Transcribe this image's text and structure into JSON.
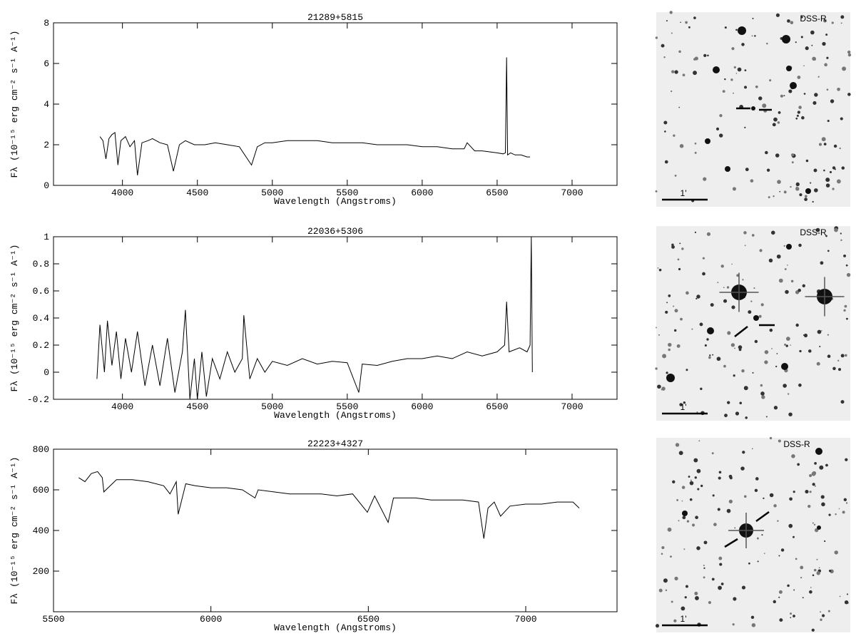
{
  "chart_data": [
    {
      "type": "line",
      "title": "21289+5815",
      "x_label": "Wavelength (Angstroms)",
      "y_label": "Fλ (10⁻¹⁵ erg cm⁻² s⁻¹ A⁻¹)",
      "x": [
        3850,
        3870,
        3890,
        3910,
        3930,
        3950,
        3970,
        3990,
        4020,
        4050,
        4080,
        4100,
        4130,
        4170,
        4200,
        4250,
        4300,
        4340,
        4380,
        4420,
        4480,
        4550,
        4620,
        4700,
        4780,
        4861,
        4900,
        4950,
        5000,
        5100,
        5200,
        5300,
        5400,
        5500,
        5600,
        5700,
        5800,
        5900,
        6000,
        6100,
        6200,
        6280,
        6300,
        6350,
        6400,
        6450,
        6500,
        6540,
        6555,
        6563,
        6570,
        6590,
        6620,
        6660,
        6700,
        6720
      ],
      "series": [
        {
          "color": "#000000",
          "values": [
            2.4,
            2.2,
            1.3,
            2.3,
            2.5,
            2.6,
            1.0,
            2.2,
            2.4,
            1.9,
            2.2,
            0.5,
            2.1,
            2.2,
            2.3,
            2.1,
            2.0,
            0.7,
            2.0,
            2.2,
            2.0,
            2.0,
            2.1,
            2.0,
            1.9,
            1.0,
            1.9,
            2.1,
            2.1,
            2.2,
            2.2,
            2.2,
            2.1,
            2.1,
            2.1,
            2.0,
            2.0,
            2.0,
            1.9,
            1.9,
            1.8,
            1.8,
            2.1,
            1.7,
            1.7,
            1.65,
            1.6,
            1.55,
            1.6,
            6.3,
            1.5,
            1.6,
            1.5,
            1.5,
            1.4,
            1.4
          ]
        }
      ],
      "xlim": [
        3540,
        7300
      ],
      "ylim": [
        0,
        8
      ],
      "xticks": [
        4000,
        4500,
        5000,
        5500,
        6000,
        6500,
        7000
      ],
      "yticks": [
        0,
        2,
        4,
        6,
        8
      ]
    },
    {
      "type": "line",
      "title": "22036+5306",
      "x_label": "Wavelength (Angstroms)",
      "y_label": "Fλ (10⁻¹⁵ erg cm⁻² s⁻¹ A⁻¹)",
      "x": [
        3830,
        3850,
        3880,
        3900,
        3930,
        3960,
        3990,
        4020,
        4060,
        4100,
        4150,
        4200,
        4250,
        4300,
        4350,
        4400,
        4420,
        4450,
        4480,
        4500,
        4530,
        4560,
        4600,
        4650,
        4700,
        4750,
        4800,
        4810,
        4850,
        4900,
        4950,
        5000,
        5100,
        5200,
        5300,
        5400,
        5500,
        5577,
        5600,
        5700,
        5800,
        5900,
        6000,
        6100,
        6200,
        6300,
        6400,
        6500,
        6550,
        6563,
        6580,
        6650,
        6700,
        6720,
        6728,
        6735
      ],
      "series": [
        {
          "color": "#000000",
          "values": [
            -0.05,
            0.35,
            0.0,
            0.38,
            0.05,
            0.3,
            -0.05,
            0.25,
            0.0,
            0.3,
            -0.1,
            0.2,
            -0.1,
            0.25,
            -0.15,
            0.15,
            0.46,
            -0.2,
            0.1,
            -0.2,
            0.15,
            -0.18,
            0.1,
            -0.05,
            0.15,
            0.0,
            0.1,
            0.42,
            -0.05,
            0.1,
            0.0,
            0.08,
            0.05,
            0.1,
            0.06,
            0.08,
            0.07,
            -0.15,
            0.06,
            0.05,
            0.08,
            0.1,
            0.1,
            0.12,
            0.1,
            0.15,
            0.12,
            0.15,
            0.2,
            0.52,
            0.15,
            0.18,
            0.15,
            0.2,
            1.0,
            0.0
          ]
        }
      ],
      "xlim": [
        3540,
        7300
      ],
      "ylim": [
        -0.2,
        1
      ],
      "xticks": [
        4000,
        4500,
        5000,
        5500,
        6000,
        6500,
        7000
      ],
      "yticks": [
        -0.2,
        0,
        0.2,
        0.4,
        0.6,
        0.8,
        1
      ]
    },
    {
      "type": "line",
      "title": "22223+4327",
      "x_label": "Wavelength (Angstroms)",
      "y_label": "Fλ (10⁻¹⁵ erg cm⁻² s⁻¹ A⁻¹)",
      "x": [
        5580,
        5600,
        5620,
        5640,
        5655,
        5660,
        5700,
        5750,
        5800,
        5850,
        5870,
        5890,
        5896,
        5920,
        5950,
        6000,
        6050,
        6100,
        6140,
        6150,
        6200,
        6250,
        6300,
        6350,
        6400,
        6450,
        6497,
        6520,
        6563,
        6580,
        6650,
        6700,
        6750,
        6800,
        6850,
        6867,
        6880,
        6900,
        6920,
        6950,
        7000,
        7050,
        7100,
        7150,
        7170
      ],
      "series": [
        {
          "color": "#000000",
          "values": [
            660,
            640,
            680,
            690,
            660,
            590,
            650,
            650,
            640,
            620,
            580,
            640,
            480,
            630,
            620,
            610,
            610,
            600,
            560,
            600,
            590,
            580,
            580,
            580,
            570,
            580,
            490,
            570,
            440,
            560,
            560,
            550,
            550,
            550,
            540,
            360,
            510,
            540,
            470,
            520,
            530,
            530,
            540,
            540,
            510
          ]
        }
      ],
      "xlim": [
        5500,
        7290
      ],
      "ylim": [
        0,
        800
      ],
      "xticks": [
        5500,
        6000,
        6500,
        7000
      ],
      "yticks": [
        200,
        400,
        600,
        800
      ]
    }
  ],
  "images": [
    {
      "label": "DSS-R",
      "scale": "1'"
    },
    {
      "label": "DSS-R",
      "scale": "1'"
    },
    {
      "label": "DSS-R",
      "scale": "1'"
    }
  ]
}
